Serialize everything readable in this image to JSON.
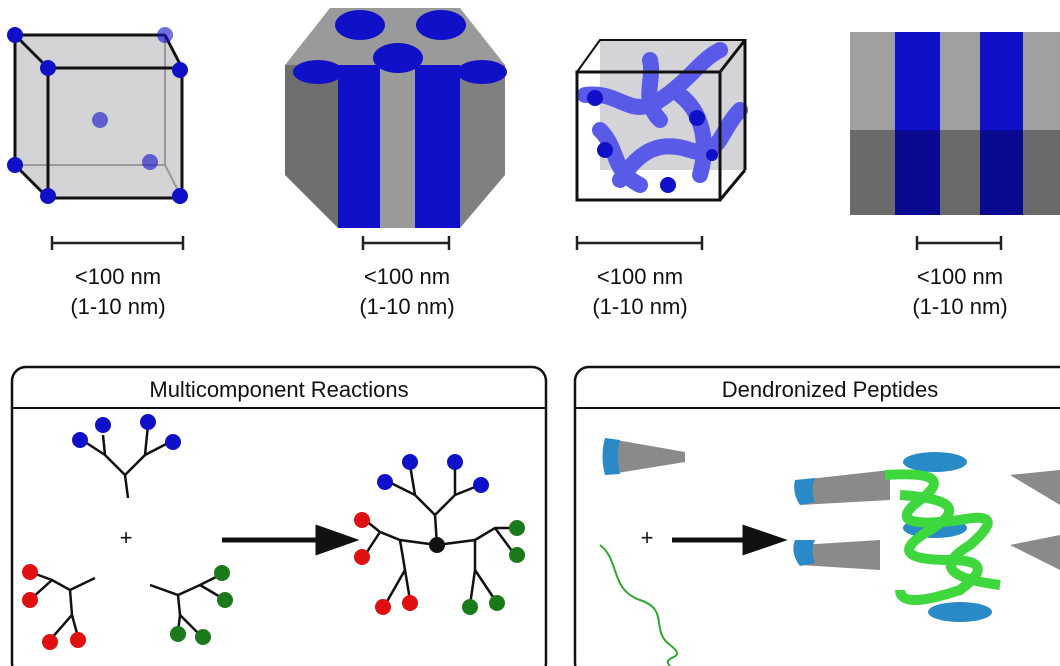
{
  "structures": [
    {
      "scale_label": "<100 nm",
      "scale_range": "(1-10 nm)"
    },
    {
      "scale_label": "<100 nm",
      "scale_range": "(1-10 nm)"
    },
    {
      "scale_label": "<100 nm",
      "scale_range": "(1-10 nm)"
    },
    {
      "scale_label": "<100 nm",
      "scale_range": "(1-10 nm)"
    }
  ],
  "panels": [
    {
      "title": "Multicomponent Reactions",
      "operator": "+"
    },
    {
      "title": "Dendronized Peptides",
      "operator": "+"
    }
  ]
}
